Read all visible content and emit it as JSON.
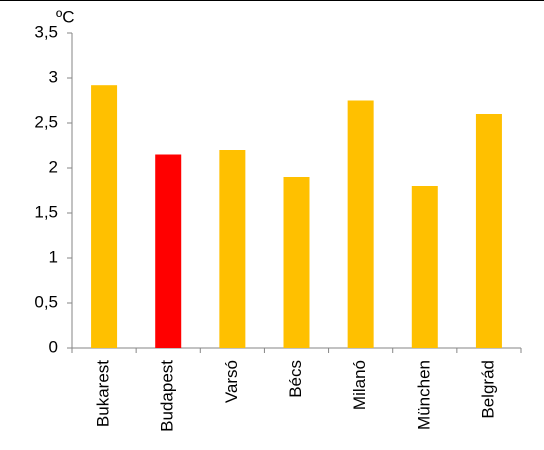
{
  "chart_data": {
    "type": "bar",
    "y_unit_label": "ºC",
    "categories": [
      "Bukarest",
      "Budapest",
      "Varsó",
      "Bécs",
      "Milanó",
      "München",
      "Belgrád"
    ],
    "values": [
      2.92,
      2.15,
      2.2,
      1.9,
      2.75,
      1.8,
      2.6
    ],
    "colors": [
      "#ffc000",
      "#ff0000",
      "#ffc000",
      "#ffc000",
      "#ffc000",
      "#ffc000",
      "#ffc000"
    ],
    "ylim": [
      0,
      3.5
    ],
    "yticks": [
      0,
      {
        "value": 0.5,
        "label": "0,5"
      },
      1,
      {
        "value": 1.5,
        "label": "1,5"
      },
      2,
      {
        "value": 2.5,
        "label": "2,5"
      },
      3,
      {
        "value": 3.5,
        "label": "3,5"
      }
    ],
    "grid": false
  }
}
